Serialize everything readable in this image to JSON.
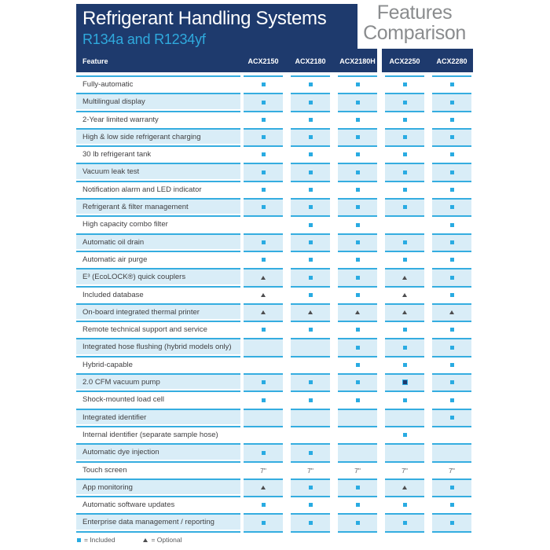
{
  "page": {
    "title": "Refrigerant Handling Systems",
    "subtitle": "R134a and R1234yf",
    "comparison_line1": "Features",
    "comparison_line2": "Comparison"
  },
  "table": {
    "feature_header": "Feature",
    "columns": [
      "ACX2150",
      "ACX2180",
      "ACX2180H",
      "ACX2250",
      "ACX2280"
    ],
    "symbol_key": {
      "sq": "included-square",
      "sqd": "included-dark-square",
      "tri": "optional-triangle",
      "": "not-available"
    },
    "rows": [
      {
        "label": "Fully-automatic",
        "values": [
          "sq",
          "sq",
          "sq",
          "sq",
          "sq"
        ]
      },
      {
        "label": "Multilingual display",
        "values": [
          "sq",
          "sq",
          "sq",
          "sq",
          "sq"
        ]
      },
      {
        "label": "2-Year limited warranty",
        "values": [
          "sq",
          "sq",
          "sq",
          "sq",
          "sq"
        ]
      },
      {
        "label": "High & low side refrigerant charging",
        "values": [
          "sq",
          "sq",
          "sq",
          "sq",
          "sq"
        ]
      },
      {
        "label": "30 lb refrigerant tank",
        "values": [
          "sq",
          "sq",
          "sq",
          "sq",
          "sq"
        ]
      },
      {
        "label": "Vacuum leak test",
        "values": [
          "sq",
          "sq",
          "sq",
          "sq",
          "sq"
        ]
      },
      {
        "label": "Notification alarm and LED indicator",
        "values": [
          "sq",
          "sq",
          "sq",
          "sq",
          "sq"
        ]
      },
      {
        "label": "Refrigerant & filter management",
        "values": [
          "sq",
          "sq",
          "sq",
          "sq",
          "sq"
        ]
      },
      {
        "label": "High capacity combo filter",
        "values": [
          "",
          "sq",
          "sq",
          "",
          "sq"
        ]
      },
      {
        "label": "Automatic oil drain",
        "values": [
          "sq",
          "sq",
          "sq",
          "sq",
          "sq"
        ]
      },
      {
        "label": "Automatic air purge",
        "values": [
          "sq",
          "sq",
          "sq",
          "sq",
          "sq"
        ]
      },
      {
        "label": "E³ (EcoLOCK®) quick couplers",
        "values": [
          "tri",
          "sq",
          "sq",
          "tri",
          "sq"
        ]
      },
      {
        "label": "Included database",
        "values": [
          "tri",
          "sq",
          "sq",
          "tri",
          "sq"
        ]
      },
      {
        "label": "On-board integrated thermal printer",
        "values": [
          "tri",
          "tri",
          "tri",
          "tri",
          "tri"
        ]
      },
      {
        "label": "Remote technical support and service",
        "values": [
          "sq",
          "sq",
          "sq",
          "sq",
          "sq"
        ]
      },
      {
        "label": "Integrated hose flushing (hybrid models only)",
        "values": [
          "",
          "",
          "sq",
          "sq",
          "sq"
        ]
      },
      {
        "label": "Hybrid-capable",
        "values": [
          "",
          "",
          "sq",
          "sq",
          "sq"
        ]
      },
      {
        "label": "2.0 CFM vacuum pump",
        "values": [
          "sq",
          "sq",
          "sq",
          "sqd",
          "sq"
        ]
      },
      {
        "label": "Shock-mounted load cell",
        "values": [
          "sq",
          "sq",
          "sq",
          "sq",
          "sq"
        ]
      },
      {
        "label": "Integrated identifier",
        "values": [
          "",
          "",
          "",
          "",
          "sq"
        ]
      },
      {
        "label": "Internal identifier (separate sample hose)",
        "values": [
          "",
          "",
          "",
          "sq",
          ""
        ]
      },
      {
        "label": "Automatic dye injection",
        "values": [
          "sq",
          "sq",
          "",
          "",
          ""
        ]
      },
      {
        "label": "Touch screen",
        "values": [
          "7\"",
          "7\"",
          "7\"",
          "7\"",
          "7\""
        ]
      },
      {
        "label": "App monitoring",
        "values": [
          "tri",
          "sq",
          "sq",
          "tri",
          "sq"
        ]
      },
      {
        "label": "Automatic software updates",
        "values": [
          "sq",
          "sq",
          "sq",
          "sq",
          "sq"
        ]
      },
      {
        "label": "Enterprise data management / reporting",
        "values": [
          "sq",
          "sq",
          "sq",
          "sq",
          "sq"
        ]
      }
    ]
  },
  "legend": {
    "included": "= Included",
    "optional": "= Optional"
  },
  "colors": {
    "navy": "#1e3a6d",
    "accent_cyan": "#29abe2",
    "row_blue": "#d9edf7",
    "triangle_gray": "#4d4d4f",
    "heading_gray": "#8a8c8e",
    "label_text": "#414042"
  }
}
